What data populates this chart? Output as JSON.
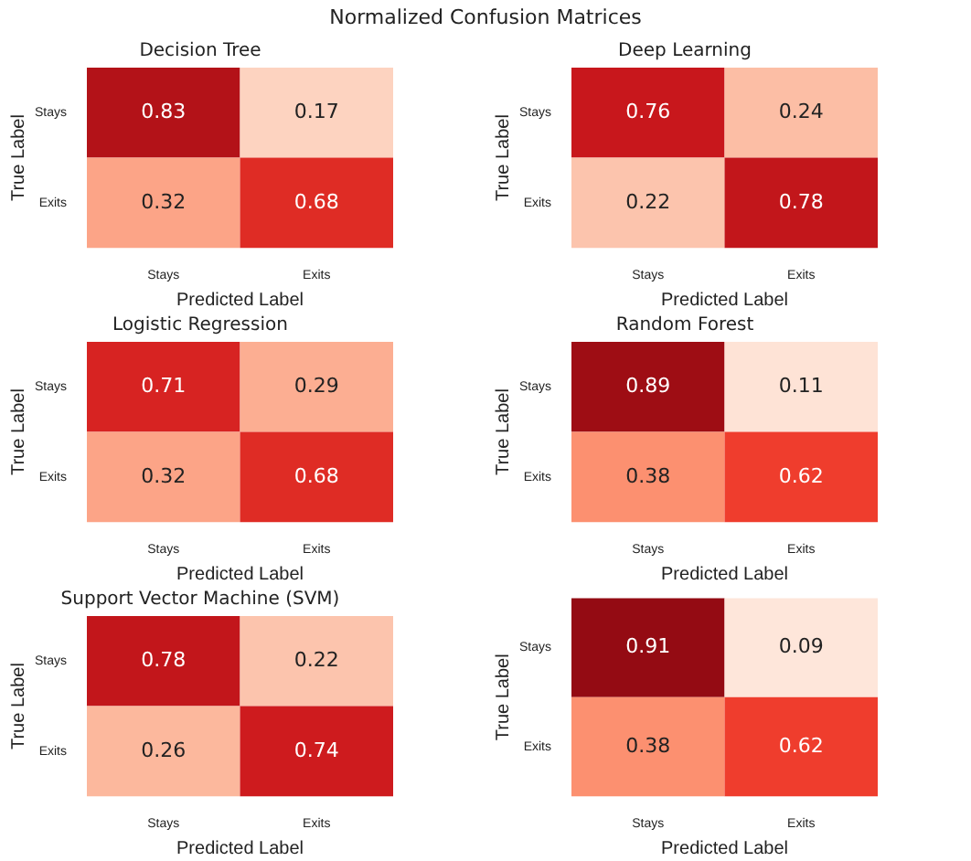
{
  "chart_data": [
    {
      "type": "heatmap",
      "title": "Decision Tree",
      "annotations": [
        "Normalized Confusion Matrices"
      ],
      "xlabel": "Predicted Label",
      "ylabel": "True Label",
      "categories": [
        "Stays",
        "Exits"
      ],
      "y_categories": [
        "Stays",
        "Exits"
      ],
      "cells": [
        [
          0.83,
          0.17
        ],
        [
          0.32,
          0.68
        ]
      ],
      "data_labels": true
    },
    {
      "type": "heatmap",
      "title": "Deep Learning",
      "xlabel": "Predicted Label",
      "ylabel": "True Label",
      "categories": [
        "Stays",
        "Exits"
      ],
      "y_categories": [
        "Stays",
        "Exits"
      ],
      "cells": [
        [
          0.76,
          0.24
        ],
        [
          0.22,
          0.78
        ]
      ],
      "data_labels": true
    },
    {
      "type": "heatmap",
      "title": "Logistic Regression",
      "xlabel": "Predicted Label",
      "ylabel": "True Label",
      "categories": [
        "Stays",
        "Exits"
      ],
      "y_categories": [
        "Stays",
        "Exits"
      ],
      "cells": [
        [
          0.71,
          0.29
        ],
        [
          0.32,
          0.68
        ]
      ],
      "data_labels": true
    },
    {
      "type": "heatmap",
      "title": "Random Forest",
      "xlabel": "Predicted Label",
      "ylabel": "True Label",
      "categories": [
        "Stays",
        "Exits"
      ],
      "y_categories": [
        "Stays",
        "Exits"
      ],
      "cells": [
        [
          0.89,
          0.11
        ],
        [
          0.38,
          0.62
        ]
      ],
      "data_labels": true
    },
    {
      "type": "heatmap",
      "title": "Support Vector Machine (SVM)",
      "xlabel": "Predicted Label",
      "ylabel": "True Label",
      "categories": [
        "Stays",
        "Exits"
      ],
      "y_categories": [
        "Stays",
        "Exits"
      ],
      "cells": [
        [
          0.78,
          0.22
        ],
        [
          0.26,
          0.74
        ]
      ],
      "data_labels": true
    },
    {
      "type": "heatmap",
      "xlabel": "Predicted Label",
      "ylabel": "True Label",
      "categories": [
        "Stays",
        "Exits"
      ],
      "y_categories": [
        "Stays",
        "Exits"
      ],
      "cells": [
        [
          0.91,
          0.09
        ],
        [
          0.38,
          0.62
        ]
      ],
      "data_labels": true
    }
  ]
}
